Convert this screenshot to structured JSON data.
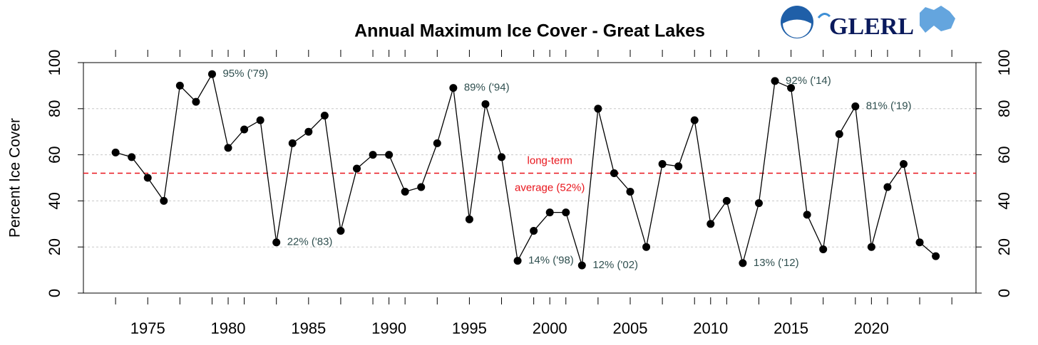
{
  "chart_data": {
    "type": "line",
    "title": "Annual Maximum Ice Cover - Great Lakes",
    "logo_text": "GLERL",
    "y_label": "Percent Ice Cover",
    "x": [
      1973,
      1974,
      1975,
      1976,
      1977,
      1978,
      1979,
      1980,
      1981,
      1982,
      1983,
      1984,
      1985,
      1986,
      1987,
      1988,
      1989,
      1990,
      1991,
      1992,
      1993,
      1994,
      1995,
      1996,
      1997,
      1998,
      1999,
      2000,
      2001,
      2002,
      2003,
      2004,
      2005,
      2006,
      2007,
      2008,
      2009,
      2010,
      2011,
      2012,
      2013,
      2014,
      2015,
      2016,
      2017,
      2018,
      2019,
      2020,
      2021,
      2022,
      2023,
      2024
    ],
    "series": [
      {
        "name": "Annual maximum ice cover",
        "color": "#000000",
        "values": [
          61,
          59,
          50,
          40,
          90,
          83,
          95,
          63,
          71,
          75,
          22,
          65,
          70,
          77,
          27,
          54,
          60,
          60,
          44,
          46,
          65,
          89,
          32,
          82,
          59,
          14,
          27,
          35,
          35,
          12,
          80,
          52,
          44,
          20,
          56,
          55,
          75,
          30,
          40,
          13,
          39,
          92,
          89,
          34,
          19,
          69,
          81,
          20,
          46,
          56,
          22,
          16
        ]
      }
    ],
    "xlim": [
      1971,
      2026.5
    ],
    "xticks": [
      1975,
      1980,
      1985,
      1990,
      1995,
      2000,
      2005,
      2010,
      2015,
      2020
    ],
    "xminorticks": [
      1973,
      1977,
      1979,
      1981,
      1983,
      1987,
      1989,
      1991,
      1993,
      1997,
      1999,
      2001,
      2003,
      2007,
      2009,
      2011,
      2013,
      2017,
      2019,
      2021,
      2023,
      2025
    ],
    "ylim": [
      0,
      100
    ],
    "yticks": [
      0,
      20,
      40,
      60,
      80,
      100
    ],
    "grid": true,
    "hline": {
      "value": 52,
      "color": "#e8141b",
      "label_top": "long-term",
      "label_bottom": "average (52%)",
      "x": 2000
    },
    "annotations": [
      {
        "x": 1979,
        "text": "95% ('79)"
      },
      {
        "x": 1983,
        "text": "22% ('83)"
      },
      {
        "x": 1994,
        "text": "89% ('94)"
      },
      {
        "x": 1998,
        "text": "14% ('98)"
      },
      {
        "x": 2002,
        "text": "12% ('02)"
      },
      {
        "x": 2012,
        "text": "13% ('12)"
      },
      {
        "x": 2014,
        "text": "92% ('14)"
      },
      {
        "x": 2019,
        "text": "81% ('19)"
      }
    ]
  }
}
